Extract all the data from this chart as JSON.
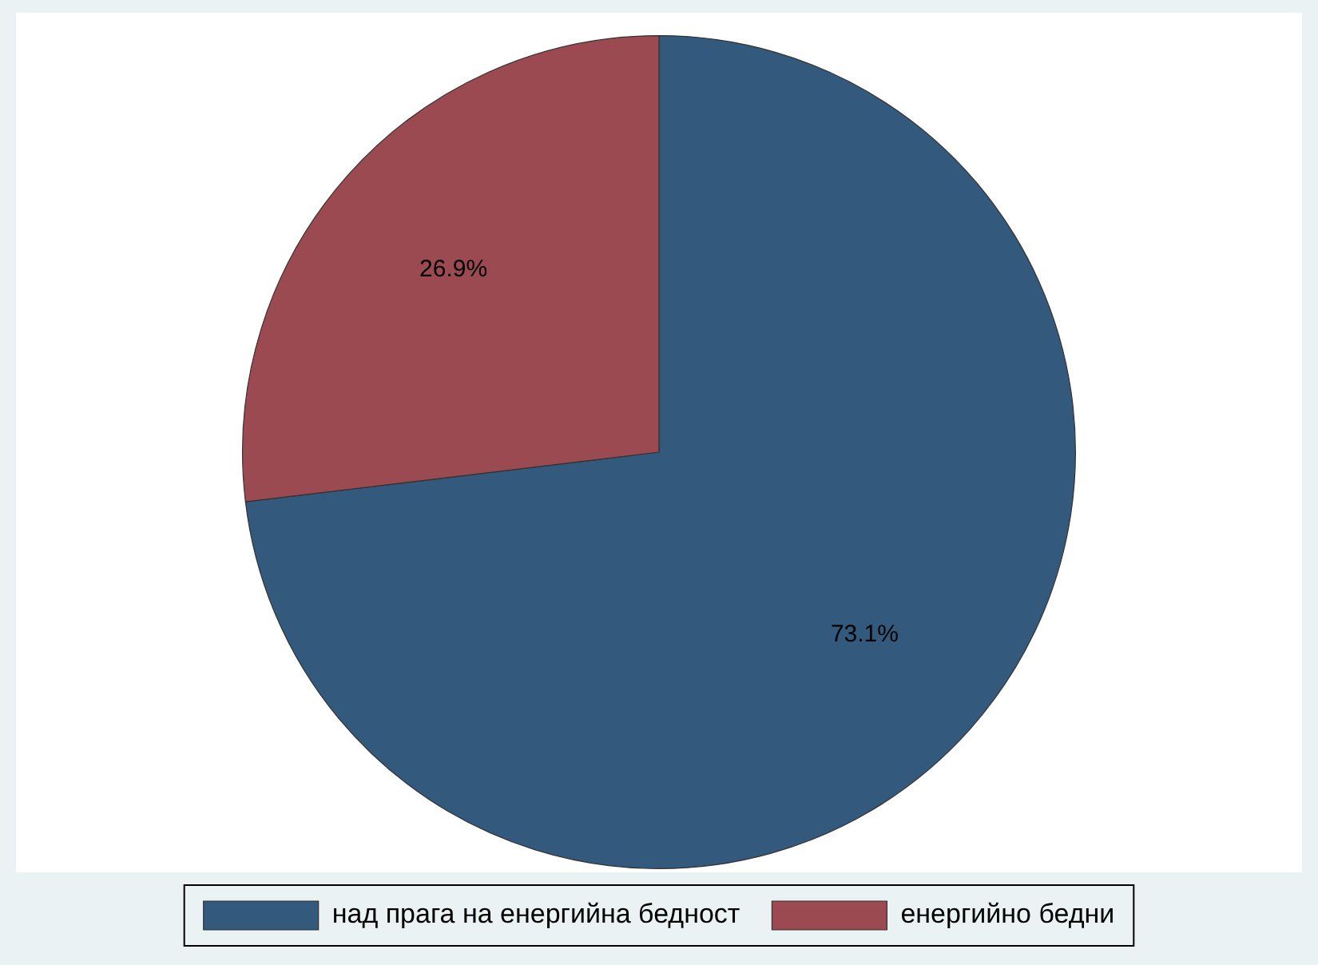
{
  "chart_data": {
    "type": "pie",
    "categories": [
      "над прага на енергийна бедност",
      "енергийно бедни"
    ],
    "values": [
      73.1,
      26.9
    ],
    "colors": [
      "#33597d",
      "#9a4a50"
    ],
    "value_labels": [
      "73.1%",
      "26.9%"
    ],
    "legend": "bottom"
  }
}
